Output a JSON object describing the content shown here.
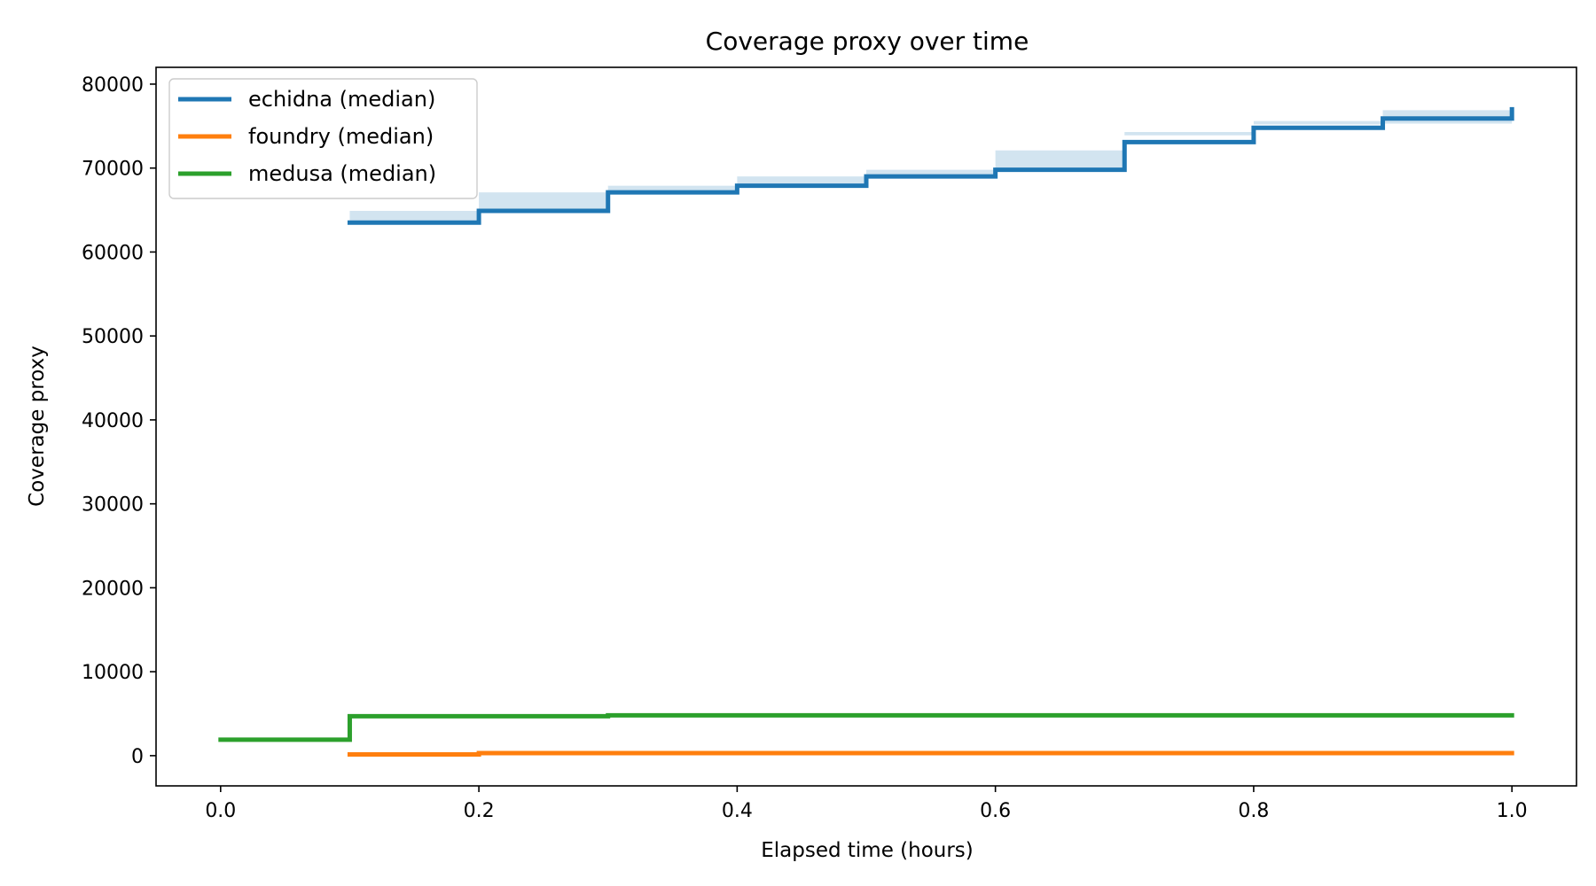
{
  "chart_data": {
    "type": "line",
    "title": "Coverage proxy over time",
    "xlabel": "Elapsed time (hours)",
    "ylabel": "Coverage proxy",
    "xlim": [
      -0.05,
      1.05
    ],
    "ylim": [
      -3600,
      82000
    ],
    "xticks": [
      0.0,
      0.2,
      0.4,
      0.6,
      0.8,
      1.0
    ],
    "xtick_labels": [
      "0.0",
      "0.2",
      "0.4",
      "0.6",
      "0.8",
      "1.0"
    ],
    "yticks": [
      0,
      10000,
      20000,
      30000,
      40000,
      50000,
      60000,
      70000,
      80000
    ],
    "ytick_labels": [
      "0",
      "10000",
      "20000",
      "30000",
      "40000",
      "50000",
      "60000",
      "70000",
      "80000"
    ],
    "grid": false,
    "legend_position": "top-left",
    "step": "post",
    "series": [
      {
        "name": "echidna (median)",
        "color": "#1f77b4",
        "x": [
          0.1,
          0.2,
          0.3,
          0.4,
          0.5,
          0.6,
          0.7,
          0.8,
          0.9,
          1.0
        ],
        "y": [
          63500,
          64900,
          67100,
          67900,
          69000,
          69800,
          73100,
          74800,
          75900,
          77000
        ],
        "band_low": [
          63500,
          64900,
          67100,
          67900,
          69000,
          69800,
          72100,
          73900,
          75200,
          75300
        ],
        "band_high": [
          63500,
          64900,
          67100,
          67900,
          69000,
          69800,
          74300,
          75600,
          76900,
          78200
        ]
      },
      {
        "name": "foundry (median)",
        "color": "#ff7f0e",
        "x": [
          0.1,
          0.2,
          1.0
        ],
        "y": [
          150,
          300,
          300
        ]
      },
      {
        "name": "medusa (median)",
        "color": "#2ca02c",
        "x": [
          0.0,
          0.1,
          0.3,
          1.0
        ],
        "y": [
          1900,
          4700,
          4800,
          4800
        ]
      }
    ]
  }
}
